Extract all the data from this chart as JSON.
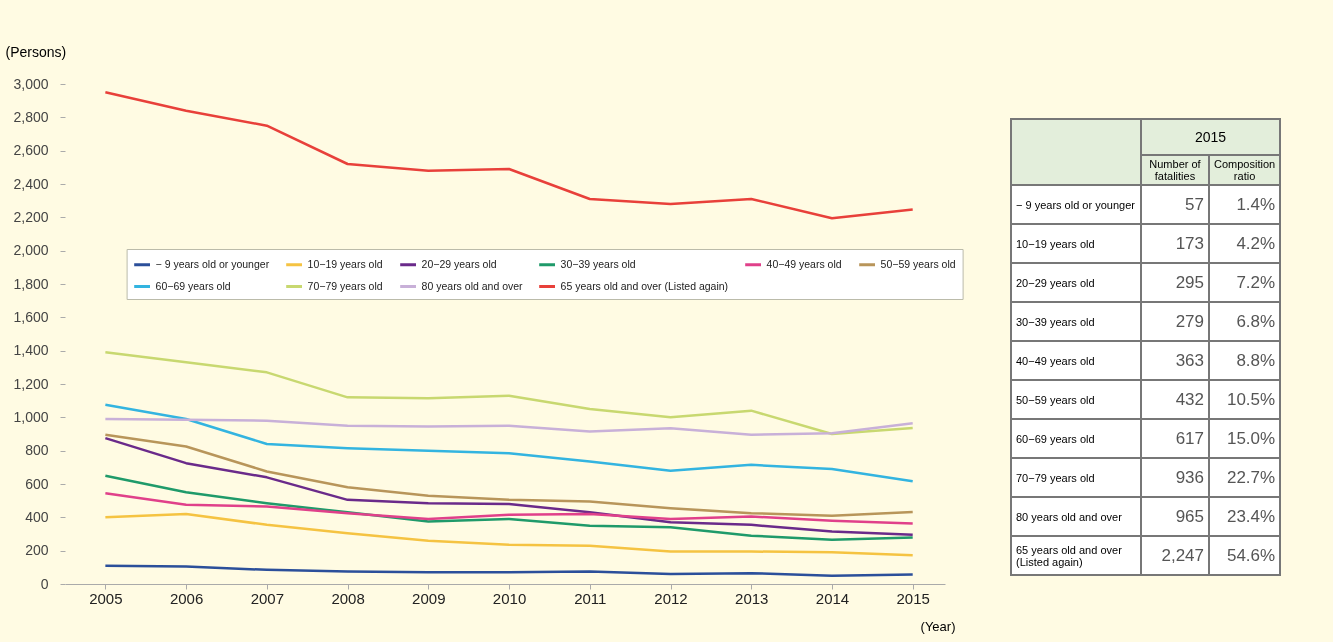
{
  "chart_data": [
    {
      "type": "line",
      "ylabel": "(Persons)",
      "xlabel": "(Year)",
      "categories": [
        "2005",
        "2006",
        "2007",
        "2008",
        "2009",
        "2010",
        "2011",
        "2012",
        "2013",
        "2014",
        "2015"
      ],
      "ylim": [
        0,
        3000
      ],
      "yticks": [
        0,
        200,
        400,
        600,
        800,
        {
          "value": 1000,
          "label": "1,000"
        },
        {
          "value": 1200,
          "label": "1,200"
        },
        {
          "value": 1400,
          "label": "1,400"
        },
        {
          "value": 1600,
          "label": "1,600"
        },
        {
          "value": 1800,
          "label": "1,800"
        },
        {
          "value": 2000,
          "label": "2,000"
        },
        {
          "value": 2200,
          "label": "2,200"
        },
        {
          "value": 2400,
          "label": "2,400"
        },
        {
          "value": 2600,
          "label": "2,600"
        },
        {
          "value": 2800,
          "label": "2,800"
        },
        {
          "value": 3000,
          "label": "3,000"
        }
      ],
      "grid": false,
      "legend": "top",
      "series": [
        {
          "name": "− 9 years old or younger",
          "color": "#2b4f9a",
          "values": [
            110,
            105,
            85,
            75,
            70,
            70,
            75,
            60,
            65,
            50,
            57
          ]
        },
        {
          "name": "10−19 years old",
          "color": "#f5c342",
          "values": [
            400,
            420,
            355,
            305,
            260,
            235,
            230,
            195,
            195,
            190,
            173
          ]
        },
        {
          "name": "20−29 years old",
          "color": "#6a2a8a",
          "values": [
            875,
            725,
            640,
            505,
            485,
            480,
            430,
            370,
            355,
            315,
            295
          ]
        },
        {
          "name": "30−39 years old",
          "color": "#1f9a6a",
          "values": [
            650,
            550,
            485,
            430,
            375,
            390,
            350,
            340,
            290,
            265,
            279
          ]
        },
        {
          "name": "40−49 years old",
          "color": "#e0408a",
          "values": [
            545,
            475,
            465,
            425,
            390,
            415,
            420,
            390,
            405,
            380,
            363
          ]
        },
        {
          "name": "50−59 years old",
          "color": "#b8955a",
          "values": [
            895,
            825,
            675,
            580,
            530,
            505,
            495,
            455,
            425,
            410,
            432
          ]
        },
        {
          "name": "60−69 years old",
          "color": "#33b4e0",
          "values": [
            1075,
            990,
            840,
            815,
            800,
            785,
            735,
            680,
            715,
            690,
            617
          ]
        },
        {
          "name": "70−79 years old",
          "color": "#c8d870",
          "values": [
            1390,
            1330,
            1270,
            1120,
            1115,
            1130,
            1050,
            1000,
            1040,
            900,
            936
          ]
        },
        {
          "name": "80 years old and over",
          "color": "#c8b0d8",
          "values": [
            990,
            985,
            980,
            950,
            945,
            950,
            915,
            935,
            895,
            905,
            965
          ]
        },
        {
          "name": "65 years old and over (Listed again)",
          "color": "#e8403a",
          "values": [
            2950,
            2840,
            2750,
            2520,
            2480,
            2490,
            2310,
            2280,
            2310,
            2195,
            2247
          ]
        }
      ]
    },
    {
      "type": "other",
      "title": "2015",
      "categories": [
        "− 9 years old or younger",
        "10−19 years old",
        "20−29 years old",
        "30−39 years old",
        "40−49 years old",
        "50−59 years old",
        "60−69 years old",
        "70−79 years old",
        "80 years old and over",
        "65 years old and over (Listed again)"
      ],
      "series": [
        {
          "name": "Number of fatalities",
          "values": [
            57,
            173,
            295,
            279,
            363,
            432,
            617,
            936,
            965,
            2247
          ],
          "value_labels": [
            "57",
            "173",
            "295",
            "279",
            "363",
            "432",
            "617",
            "936",
            "965",
            "2,247"
          ]
        },
        {
          "name": "Composition ratio",
          "values": [
            1.4,
            4.2,
            7.2,
            6.8,
            8.8,
            10.5,
            15.0,
            22.7,
            23.4,
            54.6
          ],
          "value_labels": [
            "1.4%",
            "4.2%",
            "7.2%",
            "6.8%",
            "8.8%",
            "10.5%",
            "15.0%",
            "22.7%",
            "23.4%",
            "54.6%"
          ]
        }
      ]
    }
  ]
}
